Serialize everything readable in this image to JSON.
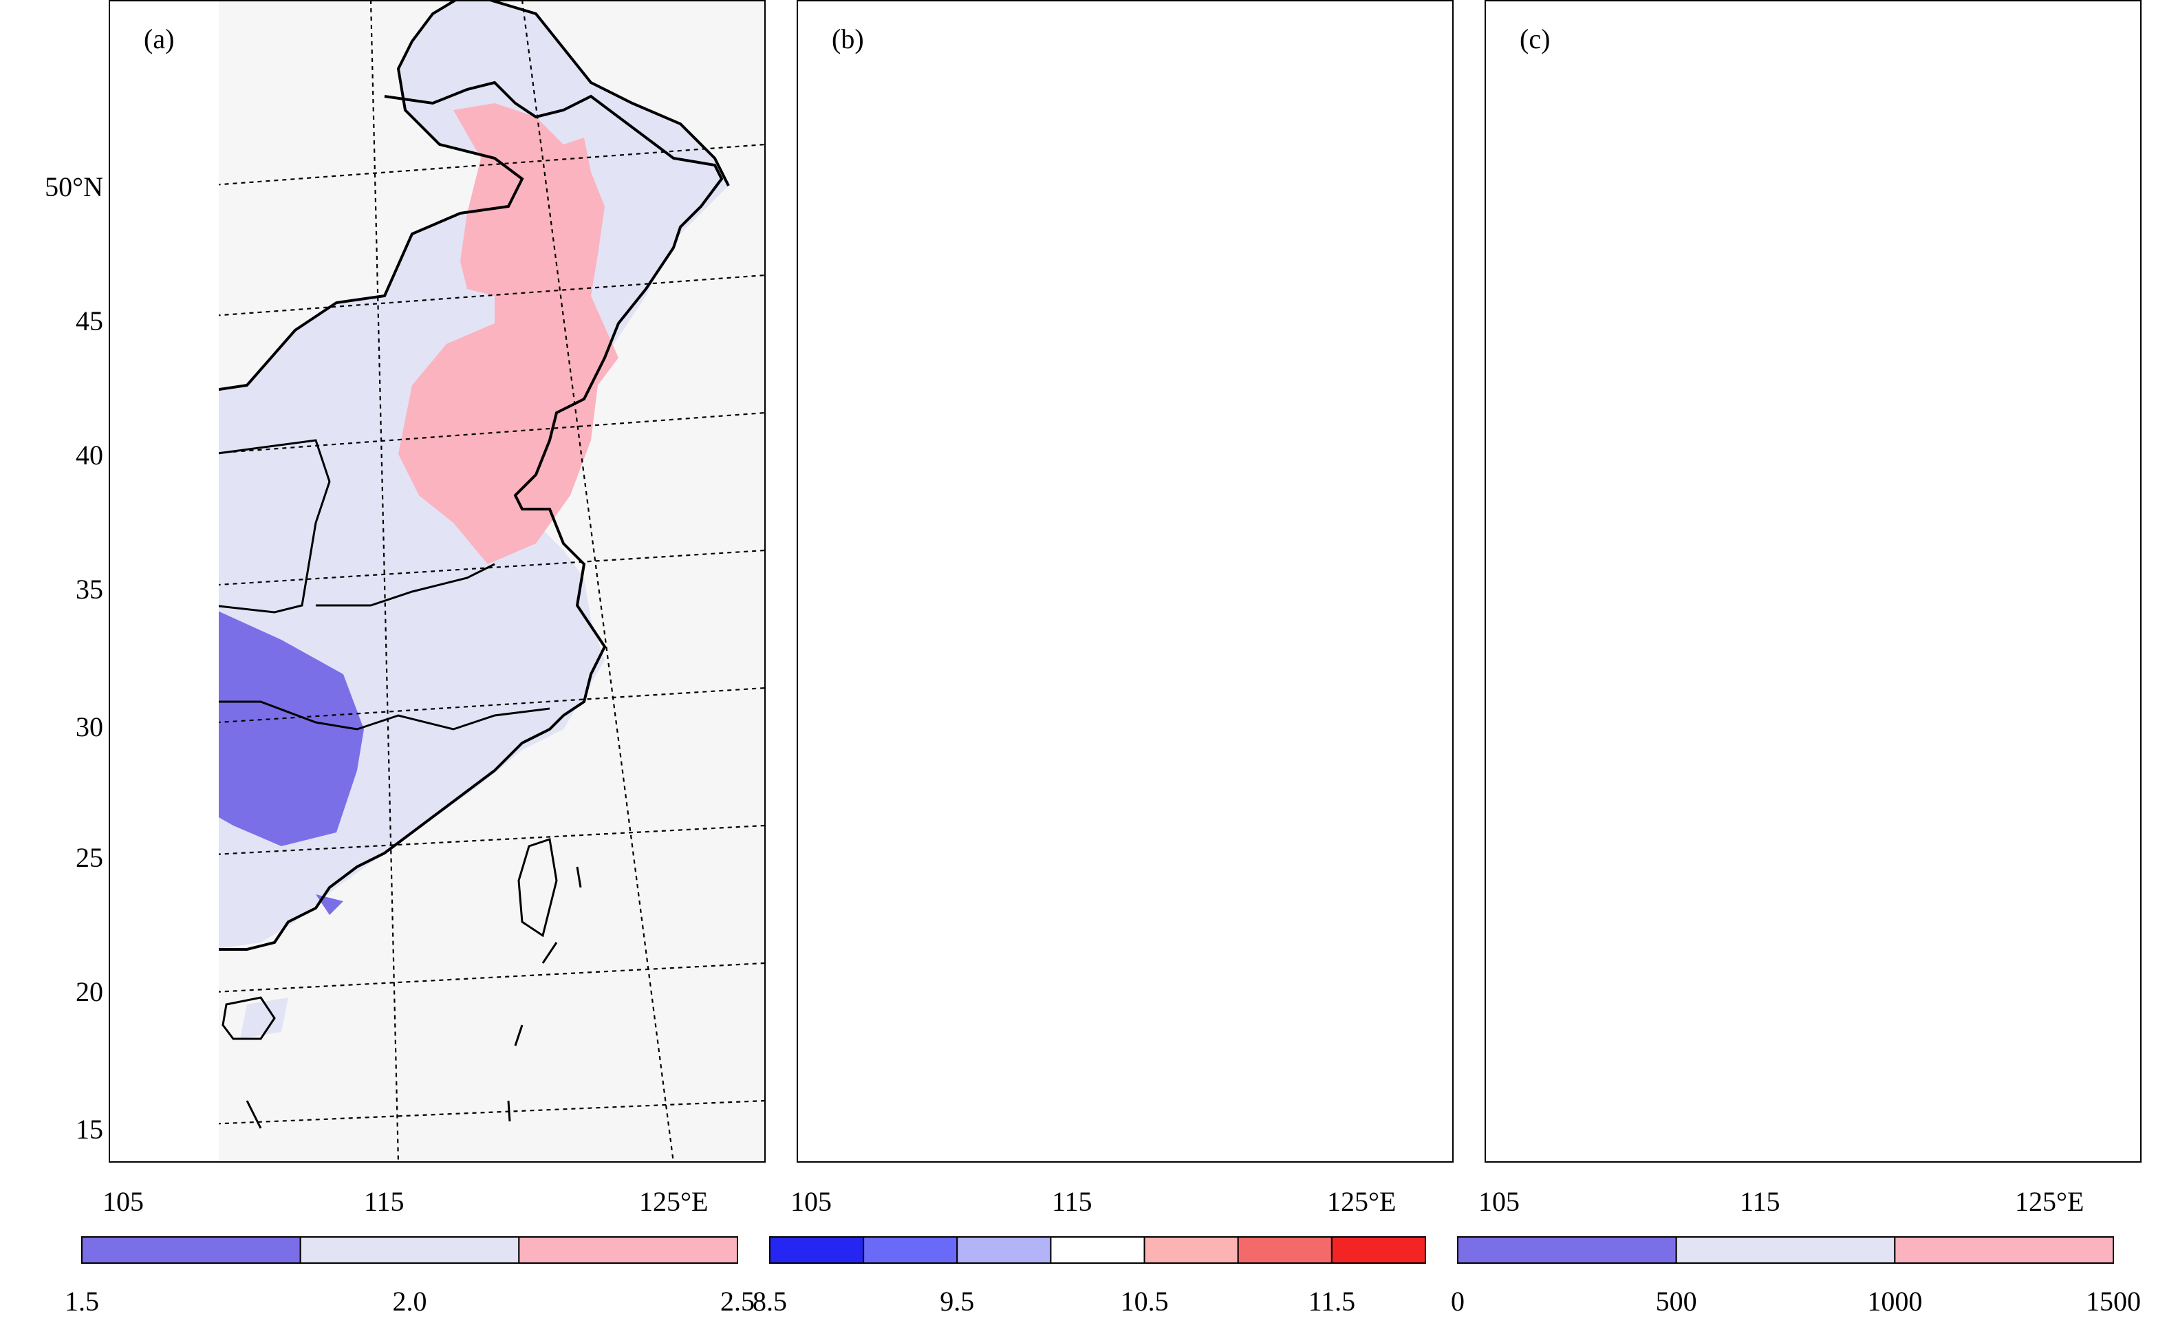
{
  "figure": {
    "lat_labels": [
      "50°N",
      "45",
      "40",
      "35",
      "30",
      "25",
      "20",
      "15"
    ],
    "lon_labels": [
      "105",
      "115",
      "125°E"
    ]
  },
  "panels": [
    {
      "id": "a",
      "label": "(a)",
      "colorbar": {
        "ticks": [
          "1.5",
          "2.0",
          "2.5"
        ],
        "colors": [
          "#7b6fe8",
          "#e2e3f5",
          "#fbb3bf"
        ]
      }
    },
    {
      "id": "b",
      "label": "(b)",
      "colorbar": {
        "ticks": [
          "8.5",
          "9.5",
          "10.5",
          "11.5"
        ],
        "colors": [
          "#2626f2",
          "#6a6af8",
          "#b3b3f7",
          "#ffffff",
          "#fbb3b3",
          "#f46a6a",
          "#f52424"
        ]
      }
    },
    {
      "id": "c",
      "label": "(c)",
      "colorbar": {
        "ticks": [
          "0",
          "500",
          "1000",
          "1500"
        ],
        "colors": [
          "#7b6fe8",
          "#e2e3f5",
          "#fbb3bf"
        ]
      }
    }
  ],
  "colors": {
    "ocean": "#f6f6f6",
    "land_outside": "#f9f9f9"
  }
}
